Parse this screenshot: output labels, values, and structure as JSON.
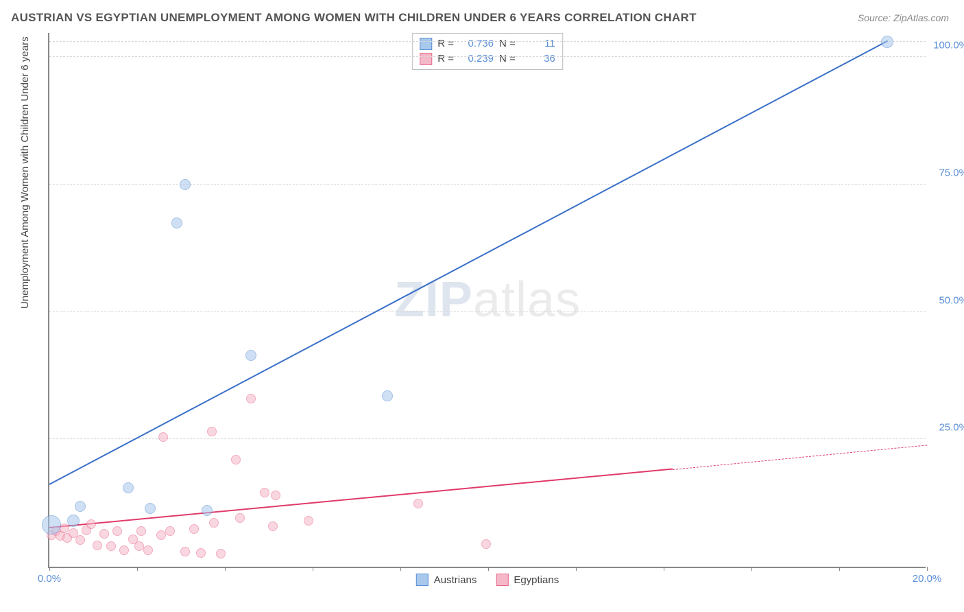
{
  "title": "AUSTRIAN VS EGYPTIAN UNEMPLOYMENT AMONG WOMEN WITH CHILDREN UNDER 6 YEARS CORRELATION CHART",
  "source": "Source: ZipAtlas.com",
  "y_axis_label": "Unemployment Among Women with Children Under 6 years",
  "watermark_a": "ZIP",
  "watermark_b": "atlas",
  "chart": {
    "type": "scatter",
    "background_color": "#ffffff",
    "grid_color": "#d8d8d8",
    "axis_color": "#888888",
    "xlim": [
      0,
      20
    ],
    "ylim": [
      0,
      105
    ],
    "x_ticks": [
      0,
      2,
      4,
      6,
      8,
      10,
      12,
      14,
      16,
      18,
      20
    ],
    "x_tick_labels": {
      "0": "0.0%",
      "20": "20.0%"
    },
    "y_ticks": [
      25,
      50,
      75,
      100
    ],
    "y_tick_labels": {
      "25": "25.0%",
      "50": "50.0%",
      "75": "75.0%",
      "100": "100.0%"
    },
    "series": {
      "austrians": {
        "label": "Austrians",
        "fill_color": "#a8c8ec",
        "stroke_color": "#5a8fd6",
        "fill_opacity": 0.55,
        "line_color": "#3a6fc8",
        "line_width": 2,
        "marker_radius": 8,
        "r": "0.736",
        "n": "11",
        "trend": {
          "x1": 0,
          "y1": 16,
          "x2": 19.1,
          "y2": 103
        },
        "points": [
          {
            "x": 0.05,
            "y": 8.2,
            "r": 14
          },
          {
            "x": 0.55,
            "y": 9.0,
            "r": 9
          },
          {
            "x": 0.7,
            "y": 11.8,
            "r": 8
          },
          {
            "x": 1.8,
            "y": 15.5,
            "r": 8
          },
          {
            "x": 2.3,
            "y": 11.4,
            "r": 8
          },
          {
            "x": 3.6,
            "y": 11.0,
            "r": 8
          },
          {
            "x": 2.9,
            "y": 67.5,
            "r": 8
          },
          {
            "x": 3.1,
            "y": 75.0,
            "r": 8
          },
          {
            "x": 4.6,
            "y": 41.5,
            "r": 8
          },
          {
            "x": 7.7,
            "y": 33.5,
            "r": 8
          },
          {
            "x": 19.1,
            "y": 103.0,
            "r": 9
          }
        ]
      },
      "egyptians": {
        "label": "Egyptians",
        "fill_color": "#f5b8c8",
        "stroke_color": "#e86a8e",
        "fill_opacity": 0.55,
        "line_color": "#e03a6a",
        "line_width": 2,
        "marker_radius": 7,
        "r": "0.239",
        "n": "36",
        "trend": {
          "x1": 0,
          "y1": 7.5,
          "x2": 14.2,
          "y2": 19.0,
          "dash_after_x": 14.2,
          "dash_to_x": 20,
          "dash_to_y": 23.8
        },
        "points": [
          {
            "x": 0.05,
            "y": 6.2
          },
          {
            "x": 0.15,
            "y": 7.0
          },
          {
            "x": 0.25,
            "y": 6.0
          },
          {
            "x": 0.35,
            "y": 7.5
          },
          {
            "x": 0.4,
            "y": 5.6
          },
          {
            "x": 0.55,
            "y": 6.6
          },
          {
            "x": 0.7,
            "y": 5.2
          },
          {
            "x": 0.85,
            "y": 7.2
          },
          {
            "x": 0.95,
            "y": 8.3
          },
          {
            "x": 1.1,
            "y": 4.2
          },
          {
            "x": 1.25,
            "y": 6.4
          },
          {
            "x": 1.4,
            "y": 4.0
          },
          {
            "x": 1.55,
            "y": 7.0
          },
          {
            "x": 1.7,
            "y": 3.3
          },
          {
            "x": 1.9,
            "y": 5.4
          },
          {
            "x": 2.05,
            "y": 4.0
          },
          {
            "x": 2.1,
            "y": 7.0
          },
          {
            "x": 2.25,
            "y": 3.2
          },
          {
            "x": 2.55,
            "y": 6.2
          },
          {
            "x": 2.6,
            "y": 25.5
          },
          {
            "x": 2.75,
            "y": 7.0
          },
          {
            "x": 3.1,
            "y": 3.0
          },
          {
            "x": 3.3,
            "y": 7.4
          },
          {
            "x": 3.45,
            "y": 2.7
          },
          {
            "x": 3.7,
            "y": 26.5
          },
          {
            "x": 3.75,
            "y": 8.6
          },
          {
            "x": 3.9,
            "y": 2.5
          },
          {
            "x": 4.25,
            "y": 21.0
          },
          {
            "x": 4.35,
            "y": 9.5
          },
          {
            "x": 4.6,
            "y": 33.0
          },
          {
            "x": 4.9,
            "y": 14.5
          },
          {
            "x": 5.1,
            "y": 8.0
          },
          {
            "x": 5.15,
            "y": 14.0
          },
          {
            "x": 5.9,
            "y": 9.0
          },
          {
            "x": 8.4,
            "y": 12.4
          },
          {
            "x": 9.95,
            "y": 4.4
          }
        ]
      }
    }
  },
  "legend_top": {
    "r_label": "R =",
    "n_label": "N ="
  },
  "legend_bottom": [
    "austrians",
    "egyptians"
  ]
}
